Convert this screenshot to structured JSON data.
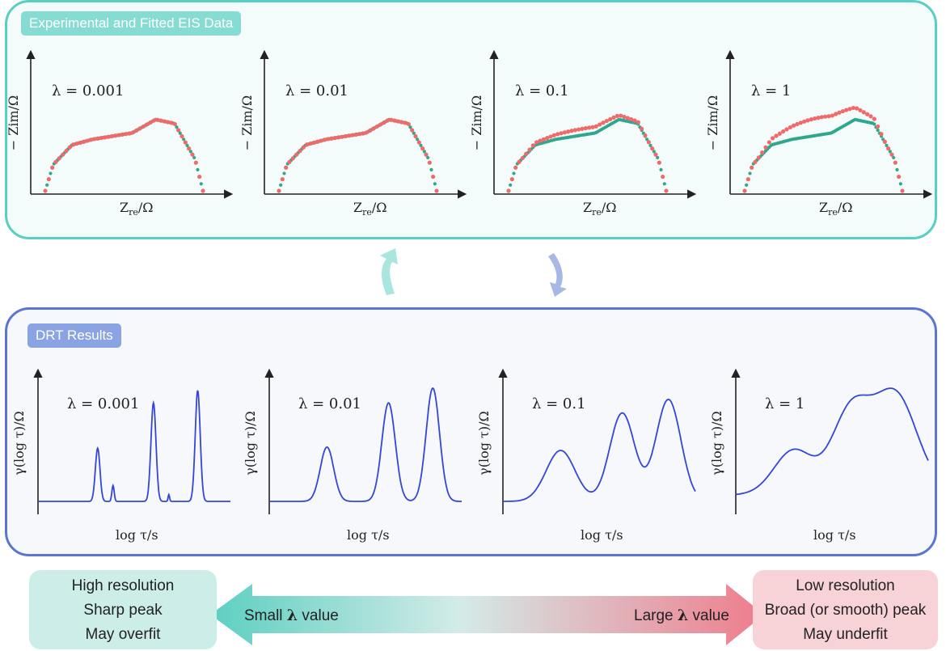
{
  "top_panel": {
    "title": "Experimental and Fitted EIS Data"
  },
  "bottom_panel": {
    "title": "DRT Results"
  },
  "eis_axes": {
    "ylabel": "− Zim/Ω",
    "xlabel_main": "Z",
    "xlabel_sub": "re",
    "xlabel_unit": "/Ω"
  },
  "drt_axes": {
    "ylabel": "γ(log τ)/Ω",
    "xlabel": "log τ/s"
  },
  "lambdas": [
    "λ = 0.001",
    "λ = 0.01",
    "λ = 0.1",
    "λ = 1"
  ],
  "bottom": {
    "left_box": [
      "High resolution",
      "Sharp peak",
      "May overfit"
    ],
    "right_box": [
      "Low resolution",
      "Broad (or smooth) peak",
      "May underfit"
    ],
    "left_arrow_text": "Small",
    "right_arrow_text": "Large",
    "lambda_symbol": "λ",
    "value_word": "value"
  },
  "colors": {
    "teal": "#58cfc2",
    "blue": "#5b76d2",
    "fit_dots": "#2fa78e",
    "exp_dots": "#f06a6a",
    "drt_line": "#3446d6"
  },
  "chart_data": {
    "type": "line",
    "eis_plots": [
      {
        "lambda": 0.001,
        "fit_deviation": 0.0
      },
      {
        "lambda": 0.01,
        "fit_deviation": 0.0
      },
      {
        "lambda": 0.1,
        "fit_deviation": 0.08
      },
      {
        "lambda": 1,
        "fit_deviation": 0.22
      }
    ],
    "drt_plots": [
      {
        "lambda": 0.001,
        "peaks": [
          {
            "pos": 0.31,
            "height": 0.47,
            "width": 0.012
          },
          {
            "pos": 0.39,
            "height": 0.14,
            "width": 0.006
          },
          {
            "pos": 0.6,
            "height": 0.87,
            "width": 0.013
          },
          {
            "pos": 0.68,
            "height": 0.06,
            "width": 0.004
          },
          {
            "pos": 0.83,
            "height": 0.98,
            "width": 0.013
          }
        ]
      },
      {
        "lambda": 0.01,
        "peaks": [
          {
            "pos": 0.3,
            "height": 0.48,
            "width": 0.035
          },
          {
            "pos": 0.62,
            "height": 0.87,
            "width": 0.035
          },
          {
            "pos": 0.85,
            "height": 1.0,
            "width": 0.035
          }
        ]
      },
      {
        "lambda": 0.1,
        "peaks": [
          {
            "pos": 0.3,
            "height": 0.45,
            "width": 0.075
          },
          {
            "pos": 0.62,
            "height": 0.78,
            "width": 0.065
          },
          {
            "pos": 0.86,
            "height": 0.9,
            "width": 0.065
          }
        ]
      },
      {
        "lambda": 1,
        "peaks": [
          {
            "pos": 0.3,
            "height": 0.4,
            "width": 0.1
          },
          {
            "pos": 0.6,
            "height": 0.75,
            "width": 0.1
          },
          {
            "pos": 0.83,
            "height": 0.88,
            "width": 0.11
          }
        ]
      }
    ]
  }
}
